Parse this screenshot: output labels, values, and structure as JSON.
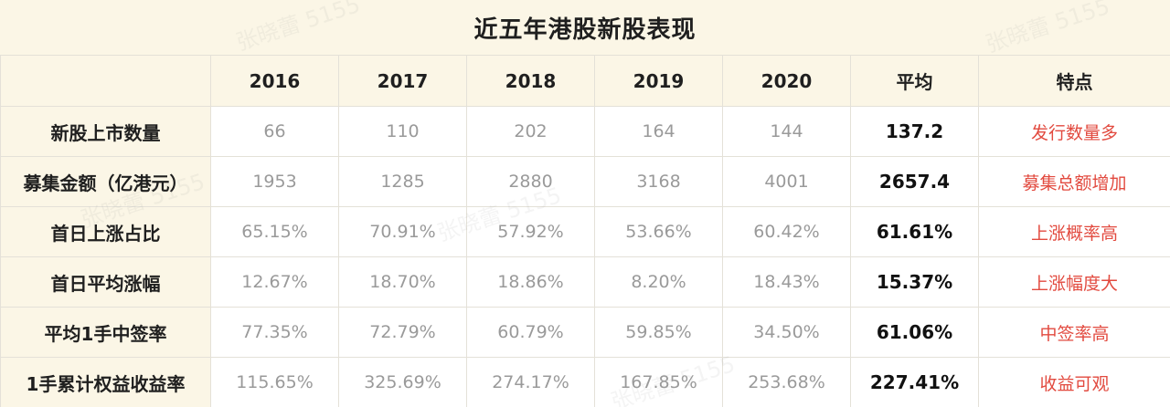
{
  "title": "近五年港股新股表现",
  "header": {
    "corner": "",
    "years": [
      "2016",
      "2017",
      "2018",
      "2019",
      "2020"
    ],
    "avg": "平均",
    "feature": "特点"
  },
  "rows": [
    {
      "label": "新股上市数量",
      "values": [
        "66",
        "110",
        "202",
        "164",
        "144"
      ],
      "avg": "137.2",
      "feature": "发行数量多"
    },
    {
      "label": "募集金额（亿港元）",
      "values": [
        "1953",
        "1285",
        "2880",
        "3168",
        "4001"
      ],
      "avg": "2657.4",
      "feature": "募集总额增加"
    },
    {
      "label": "首日上涨占比",
      "values": [
        "65.15%",
        "70.91%",
        "57.92%",
        "53.66%",
        "60.42%"
      ],
      "avg": "61.61%",
      "feature": "上涨概率高"
    },
    {
      "label": "首日平均涨幅",
      "values": [
        "12.67%",
        "18.70%",
        "18.86%",
        "8.20%",
        "18.43%"
      ],
      "avg": "15.37%",
      "feature": "上涨幅度大"
    },
    {
      "label": "平均1手中签率",
      "values": [
        "77.35%",
        "72.79%",
        "60.79%",
        "59.85%",
        "34.50%"
      ],
      "avg": "61.06%",
      "feature": "中签率高"
    },
    {
      "label": "1手累计权益收益率",
      "values": [
        "115.65%",
        "325.69%",
        "274.17%",
        "167.85%",
        "253.68%"
      ],
      "avg": "227.41%",
      "feature": "收益可观"
    }
  ],
  "watermark": "张晓蕾 5155",
  "colors": {
    "header_bg": "#fbf6e6",
    "feature_text": "#e24a3f",
    "value_text": "#9a9a9a"
  }
}
